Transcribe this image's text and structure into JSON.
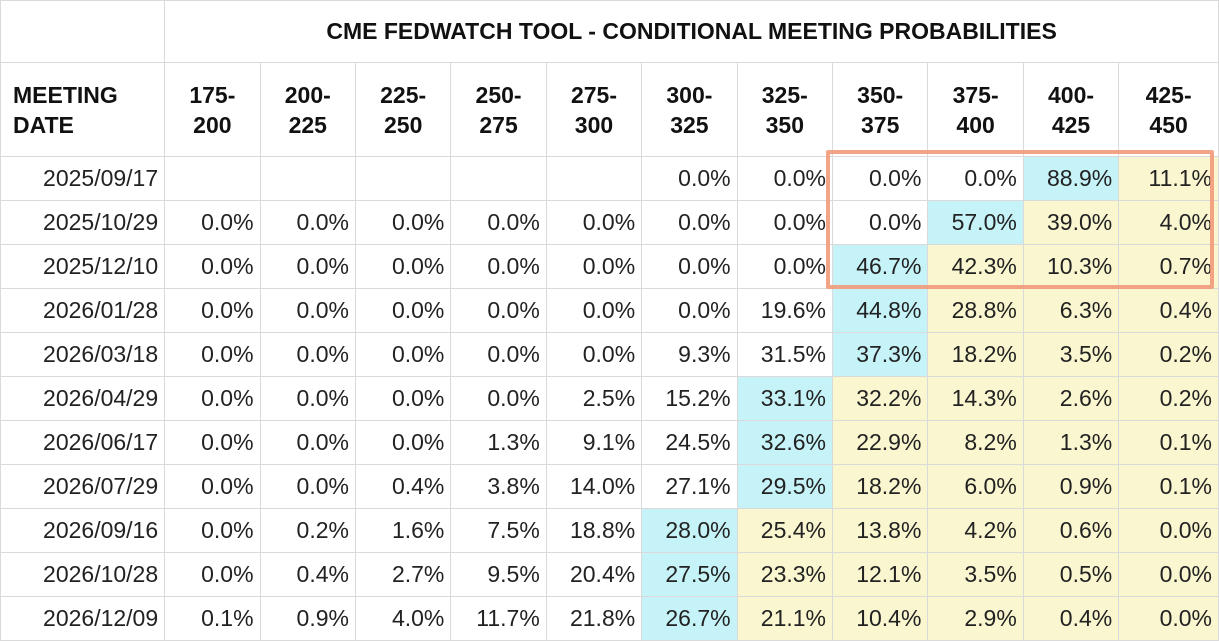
{
  "title": "CME FEDWATCH TOOL - CONDITIONAL MEETING PROBABILITIES",
  "colors": {
    "blue": "#c6f3f8",
    "yellow": "#f9f6d0",
    "highlight": "#f19a7a"
  },
  "chart_data": {
    "type": "table",
    "title": "CME FEDWATCH TOOL - CONDITIONAL MEETING PROBABILITIES",
    "row_header_label": "MEETING DATE",
    "columns": [
      "175-200",
      "200-225",
      "225-250",
      "250-275",
      "275-300",
      "300-325",
      "325-350",
      "350-375",
      "375-400",
      "400-425",
      "425-450"
    ],
    "rows": [
      {
        "date": "2025/09/17",
        "values": [
          "",
          "",
          "",
          "",
          "",
          "0.0%",
          "0.0%",
          "0.0%",
          "0.0%",
          "88.9%",
          "11.1%"
        ],
        "blue_col": 9,
        "yellow_from": 10
      },
      {
        "date": "2025/10/29",
        "values": [
          "0.0%",
          "0.0%",
          "0.0%",
          "0.0%",
          "0.0%",
          "0.0%",
          "0.0%",
          "0.0%",
          "57.0%",
          "39.0%",
          "4.0%"
        ],
        "blue_col": 8,
        "yellow_from": 9
      },
      {
        "date": "2025/12/10",
        "values": [
          "0.0%",
          "0.0%",
          "0.0%",
          "0.0%",
          "0.0%",
          "0.0%",
          "0.0%",
          "46.7%",
          "42.3%",
          "10.3%",
          "0.7%"
        ],
        "blue_col": 7,
        "yellow_from": 8
      },
      {
        "date": "2026/01/28",
        "values": [
          "0.0%",
          "0.0%",
          "0.0%",
          "0.0%",
          "0.0%",
          "0.0%",
          "19.6%",
          "44.8%",
          "28.8%",
          "6.3%",
          "0.4%"
        ],
        "blue_col": 7,
        "yellow_from": 8
      },
      {
        "date": "2026/03/18",
        "values": [
          "0.0%",
          "0.0%",
          "0.0%",
          "0.0%",
          "0.0%",
          "9.3%",
          "31.5%",
          "37.3%",
          "18.2%",
          "3.5%",
          "0.2%"
        ],
        "blue_col": 7,
        "yellow_from": 8
      },
      {
        "date": "2026/04/29",
        "values": [
          "0.0%",
          "0.0%",
          "0.0%",
          "0.0%",
          "2.5%",
          "15.2%",
          "33.1%",
          "32.2%",
          "14.3%",
          "2.6%",
          "0.2%"
        ],
        "blue_col": 6,
        "yellow_from": 7
      },
      {
        "date": "2026/06/17",
        "values": [
          "0.0%",
          "0.0%",
          "0.0%",
          "1.3%",
          "9.1%",
          "24.5%",
          "32.6%",
          "22.9%",
          "8.2%",
          "1.3%",
          "0.1%"
        ],
        "blue_col": 6,
        "yellow_from": 7
      },
      {
        "date": "2026/07/29",
        "values": [
          "0.0%",
          "0.0%",
          "0.4%",
          "3.8%",
          "14.0%",
          "27.1%",
          "29.5%",
          "18.2%",
          "6.0%",
          "0.9%",
          "0.1%"
        ],
        "blue_col": 6,
        "yellow_from": 7
      },
      {
        "date": "2026/09/16",
        "values": [
          "0.0%",
          "0.2%",
          "1.6%",
          "7.5%",
          "18.8%",
          "28.0%",
          "25.4%",
          "13.8%",
          "4.2%",
          "0.6%",
          "0.0%"
        ],
        "blue_col": 5,
        "yellow_from": 6
      },
      {
        "date": "2026/10/28",
        "values": [
          "0.0%",
          "0.4%",
          "2.7%",
          "9.5%",
          "20.4%",
          "27.5%",
          "23.3%",
          "12.1%",
          "3.5%",
          "0.5%",
          "0.0%"
        ],
        "blue_col": 5,
        "yellow_from": 6
      },
      {
        "date": "2026/12/09",
        "values": [
          "0.1%",
          "0.9%",
          "4.0%",
          "11.7%",
          "21.8%",
          "26.7%",
          "21.1%",
          "10.4%",
          "2.9%",
          "0.4%",
          "0.0%"
        ],
        "blue_col": 5,
        "yellow_from": 6
      }
    ]
  }
}
